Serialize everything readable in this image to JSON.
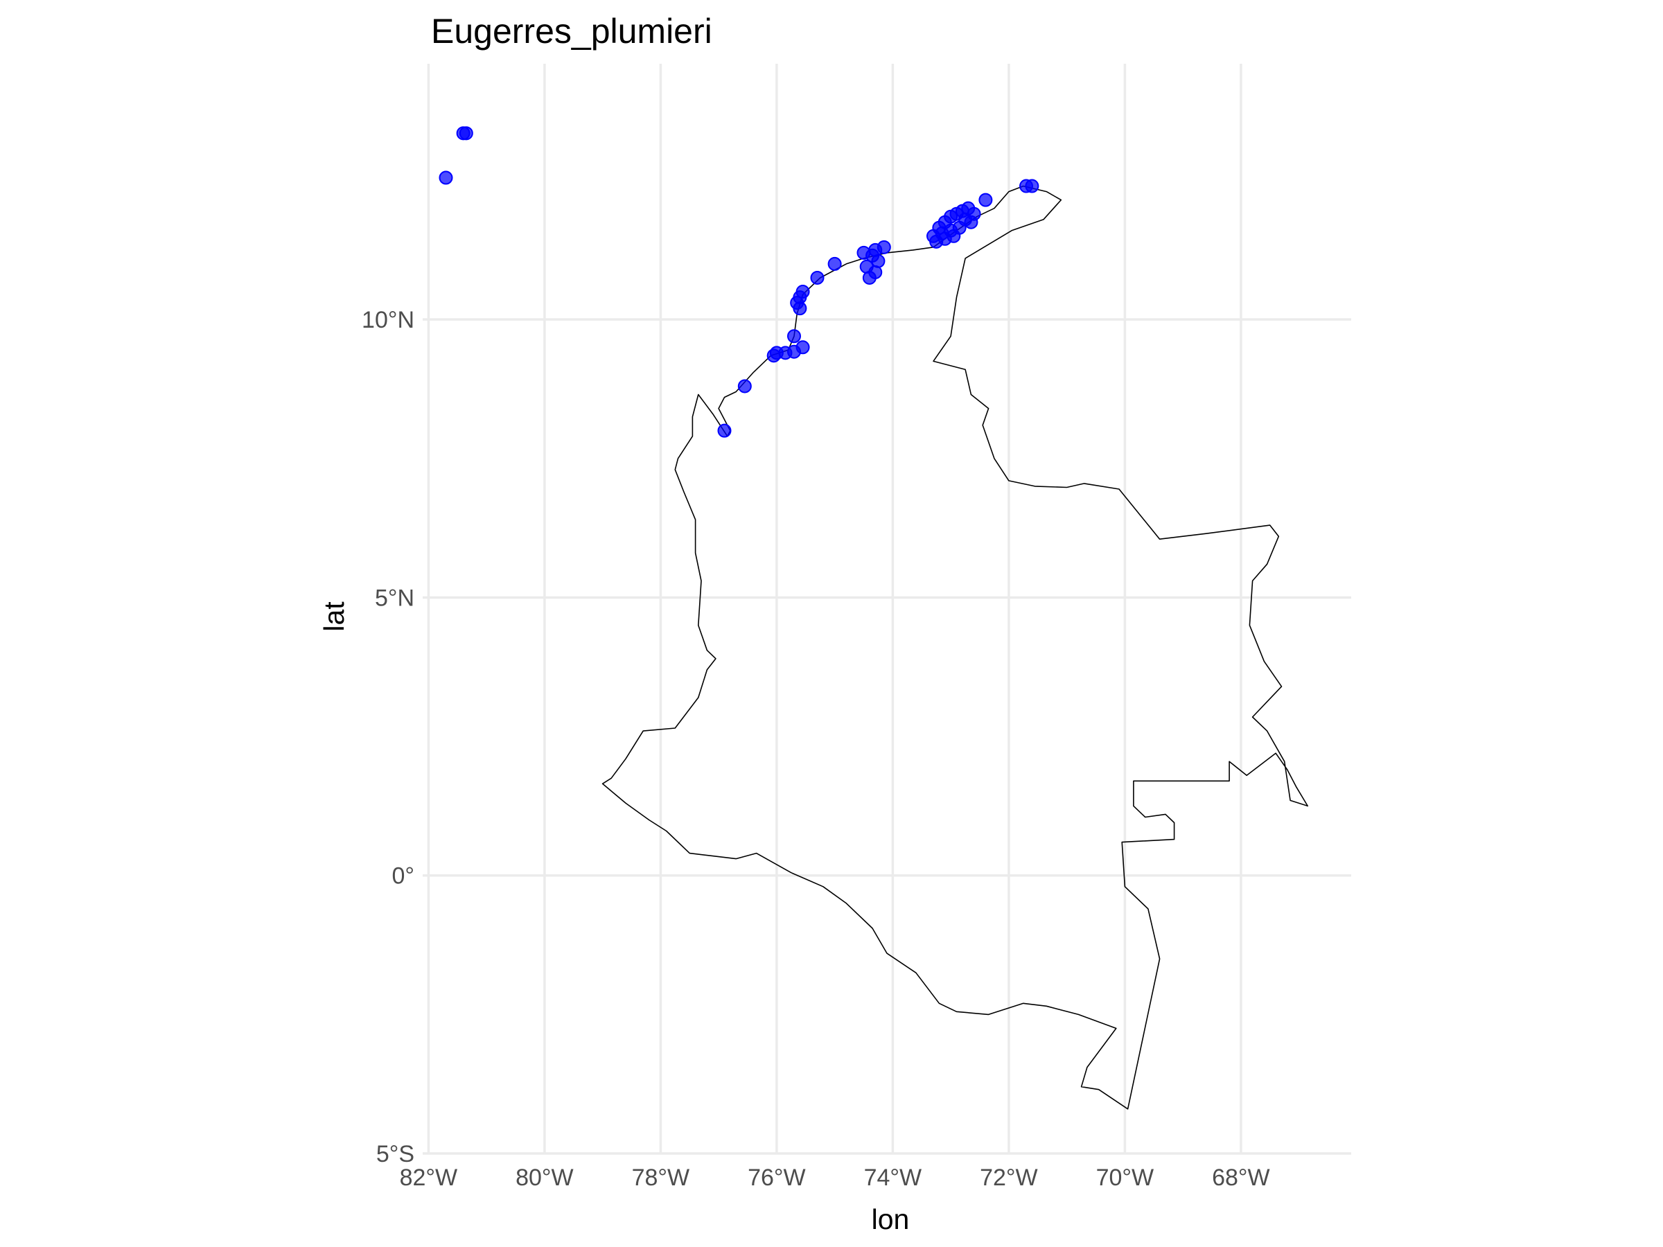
{
  "chart_data": {
    "type": "scatter",
    "title": "Eugerres_plumieri",
    "xlabel": "lon",
    "ylabel": "lat",
    "xlim": [
      -82.1,
      -66.1
    ],
    "ylim": [
      -5,
      14.6
    ],
    "x_ticks": [
      -82,
      -80,
      -78,
      -76,
      -74,
      -72,
      -70,
      -68
    ],
    "x_tick_labels": [
      "82°W",
      "80°W",
      "78°W",
      "76°W",
      "74°W",
      "72°W",
      "70°W",
      "68°W"
    ],
    "y_ticks": [
      -5,
      0,
      5,
      10
    ],
    "y_tick_labels": [
      "5°S",
      "0°",
      "5°N",
      "10°N"
    ],
    "grid": true,
    "legend": "none",
    "point_color": "#0000ff",
    "outline_color": "#000000",
    "country_outline": [
      [
        -72.75,
        11.1
      ],
      [
        -71.95,
        11.6
      ],
      [
        -71.4,
        11.8
      ],
      [
        -71.1,
        12.15
      ],
      [
        -71.35,
        12.3
      ],
      [
        -71.75,
        12.4
      ],
      [
        -72.0,
        12.3
      ],
      [
        -72.25,
        12.0
      ],
      [
        -72.55,
        11.85
      ],
      [
        -72.9,
        11.6
      ],
      [
        -73.3,
        11.3
      ],
      [
        -73.65,
        11.25
      ],
      [
        -74.1,
        11.2
      ],
      [
        -74.5,
        11.1
      ],
      [
        -74.8,
        11.0
      ],
      [
        -75.25,
        10.75
      ],
      [
        -75.55,
        10.45
      ],
      [
        -75.65,
        10.1
      ],
      [
        -75.7,
        9.7
      ],
      [
        -75.8,
        9.45
      ],
      [
        -76.1,
        9.35
      ],
      [
        -76.4,
        9.05
      ],
      [
        -76.7,
        8.7
      ],
      [
        -76.9,
        8.6
      ],
      [
        -77.0,
        8.4
      ],
      [
        -76.8,
        8.0
      ],
      [
        -76.85,
        7.9
      ],
      [
        -77.1,
        8.3
      ],
      [
        -77.35,
        8.65
      ],
      [
        -77.45,
        8.25
      ],
      [
        -77.45,
        7.9
      ],
      [
        -77.7,
        7.5
      ],
      [
        -77.75,
        7.3
      ],
      [
        -77.6,
        6.9
      ],
      [
        -77.4,
        6.4
      ],
      [
        -77.4,
        5.8
      ],
      [
        -77.3,
        5.3
      ],
      [
        -77.35,
        4.5
      ],
      [
        -77.2,
        4.05
      ],
      [
        -77.05,
        3.9
      ],
      [
        -77.2,
        3.7
      ],
      [
        -77.35,
        3.2
      ],
      [
        -77.75,
        2.65
      ],
      [
        -78.3,
        2.6
      ],
      [
        -78.6,
        2.1
      ],
      [
        -78.85,
        1.75
      ],
      [
        -79.0,
        1.65
      ],
      [
        -78.6,
        1.3
      ],
      [
        -78.2,
        1.0
      ],
      [
        -77.9,
        0.8
      ],
      [
        -77.5,
        0.4
      ],
      [
        -77.1,
        0.35
      ],
      [
        -76.7,
        0.3
      ],
      [
        -76.35,
        0.4
      ],
      [
        -75.75,
        0.05
      ],
      [
        -75.2,
        -0.2
      ],
      [
        -74.8,
        -0.5
      ],
      [
        -74.35,
        -0.95
      ],
      [
        -74.1,
        -1.4
      ],
      [
        -73.6,
        -1.75
      ],
      [
        -73.2,
        -2.3
      ],
      [
        -72.9,
        -2.45
      ],
      [
        -72.35,
        -2.5
      ],
      [
        -71.75,
        -2.3
      ],
      [
        -71.35,
        -2.35
      ],
      [
        -70.8,
        -2.5
      ],
      [
        -70.15,
        -2.75
      ],
      [
        -70.65,
        -3.45
      ],
      [
        -70.75,
        -3.8
      ],
      [
        -70.45,
        -3.85
      ],
      [
        -69.95,
        -4.2
      ],
      [
        -69.4,
        -1.5
      ],
      [
        -69.6,
        -0.6
      ],
      [
        -70.0,
        -0.2
      ],
      [
        -70.05,
        0.6
      ],
      [
        -69.15,
        0.65
      ],
      [
        -69.15,
        0.95
      ],
      [
        -69.3,
        1.1
      ],
      [
        -69.65,
        1.05
      ],
      [
        -69.85,
        1.25
      ],
      [
        -69.85,
        1.7
      ],
      [
        -68.2,
        1.7
      ],
      [
        -68.2,
        2.05
      ],
      [
        -67.9,
        1.8
      ],
      [
        -67.4,
        2.2
      ],
      [
        -67.2,
        1.9
      ],
      [
        -67.05,
        1.6
      ],
      [
        -66.85,
        1.25
      ],
      [
        -67.15,
        1.35
      ],
      [
        -67.25,
        2.05
      ],
      [
        -67.55,
        2.6
      ],
      [
        -67.8,
        2.85
      ],
      [
        -67.3,
        3.4
      ],
      [
        -67.6,
        3.85
      ],
      [
        -67.85,
        4.5
      ],
      [
        -67.8,
        5.3
      ],
      [
        -67.55,
        5.6
      ],
      [
        -67.35,
        6.1
      ],
      [
        -67.5,
        6.3
      ],
      [
        -68.6,
        6.15
      ],
      [
        -69.4,
        6.05
      ],
      [
        -70.1,
        6.95
      ],
      [
        -70.7,
        7.05
      ],
      [
        -71.0,
        6.98
      ],
      [
        -71.55,
        7.0
      ],
      [
        -72.0,
        7.1
      ],
      [
        -72.25,
        7.5
      ],
      [
        -72.45,
        8.1
      ],
      [
        -72.35,
        8.4
      ],
      [
        -72.65,
        8.65
      ],
      [
        -72.75,
        9.1
      ],
      [
        -73.3,
        9.25
      ],
      [
        -73.0,
        9.7
      ],
      [
        -72.9,
        10.4
      ],
      [
        -72.75,
        11.1
      ]
    ],
    "points": [
      {
        "lon": -81.35,
        "lat": 13.35
      },
      {
        "lon": -81.4,
        "lat": 13.35
      },
      {
        "lon": -81.7,
        "lat": 12.55
      },
      {
        "lon": -71.7,
        "lat": 12.4
      },
      {
        "lon": -71.6,
        "lat": 12.4
      },
      {
        "lon": -72.4,
        "lat": 12.15
      },
      {
        "lon": -72.7,
        "lat": 12.0
      },
      {
        "lon": -72.8,
        "lat": 11.95
      },
      {
        "lon": -72.9,
        "lat": 11.9
      },
      {
        "lon": -73.0,
        "lat": 11.85
      },
      {
        "lon": -73.1,
        "lat": 11.75
      },
      {
        "lon": -72.6,
        "lat": 11.9
      },
      {
        "lon": -72.75,
        "lat": 11.8
      },
      {
        "lon": -72.65,
        "lat": 11.75
      },
      {
        "lon": -73.2,
        "lat": 11.65
      },
      {
        "lon": -73.0,
        "lat": 11.6
      },
      {
        "lon": -72.85,
        "lat": 11.65
      },
      {
        "lon": -73.3,
        "lat": 11.5
      },
      {
        "lon": -73.1,
        "lat": 11.45
      },
      {
        "lon": -72.95,
        "lat": 11.5
      },
      {
        "lon": -73.25,
        "lat": 11.4
      },
      {
        "lon": -73.15,
        "lat": 11.55
      },
      {
        "lon": -74.15,
        "lat": 11.3
      },
      {
        "lon": -74.3,
        "lat": 11.25
      },
      {
        "lon": -74.5,
        "lat": 11.2
      },
      {
        "lon": -74.35,
        "lat": 11.15
      },
      {
        "lon": -74.25,
        "lat": 11.05
      },
      {
        "lon": -74.45,
        "lat": 10.95
      },
      {
        "lon": -74.3,
        "lat": 10.85
      },
      {
        "lon": -74.4,
        "lat": 10.75
      },
      {
        "lon": -75.0,
        "lat": 11.0
      },
      {
        "lon": -75.3,
        "lat": 10.75
      },
      {
        "lon": -75.55,
        "lat": 10.5
      },
      {
        "lon": -75.6,
        "lat": 10.4
      },
      {
        "lon": -75.65,
        "lat": 10.3
      },
      {
        "lon": -75.6,
        "lat": 10.2
      },
      {
        "lon": -75.7,
        "lat": 9.7
      },
      {
        "lon": -75.55,
        "lat": 9.5
      },
      {
        "lon": -75.7,
        "lat": 9.42
      },
      {
        "lon": -75.85,
        "lat": 9.4
      },
      {
        "lon": -76.0,
        "lat": 9.4
      },
      {
        "lon": -76.05,
        "lat": 9.35
      },
      {
        "lon": -76.55,
        "lat": 8.8
      },
      {
        "lon": -76.9,
        "lat": 8.0
      }
    ]
  }
}
